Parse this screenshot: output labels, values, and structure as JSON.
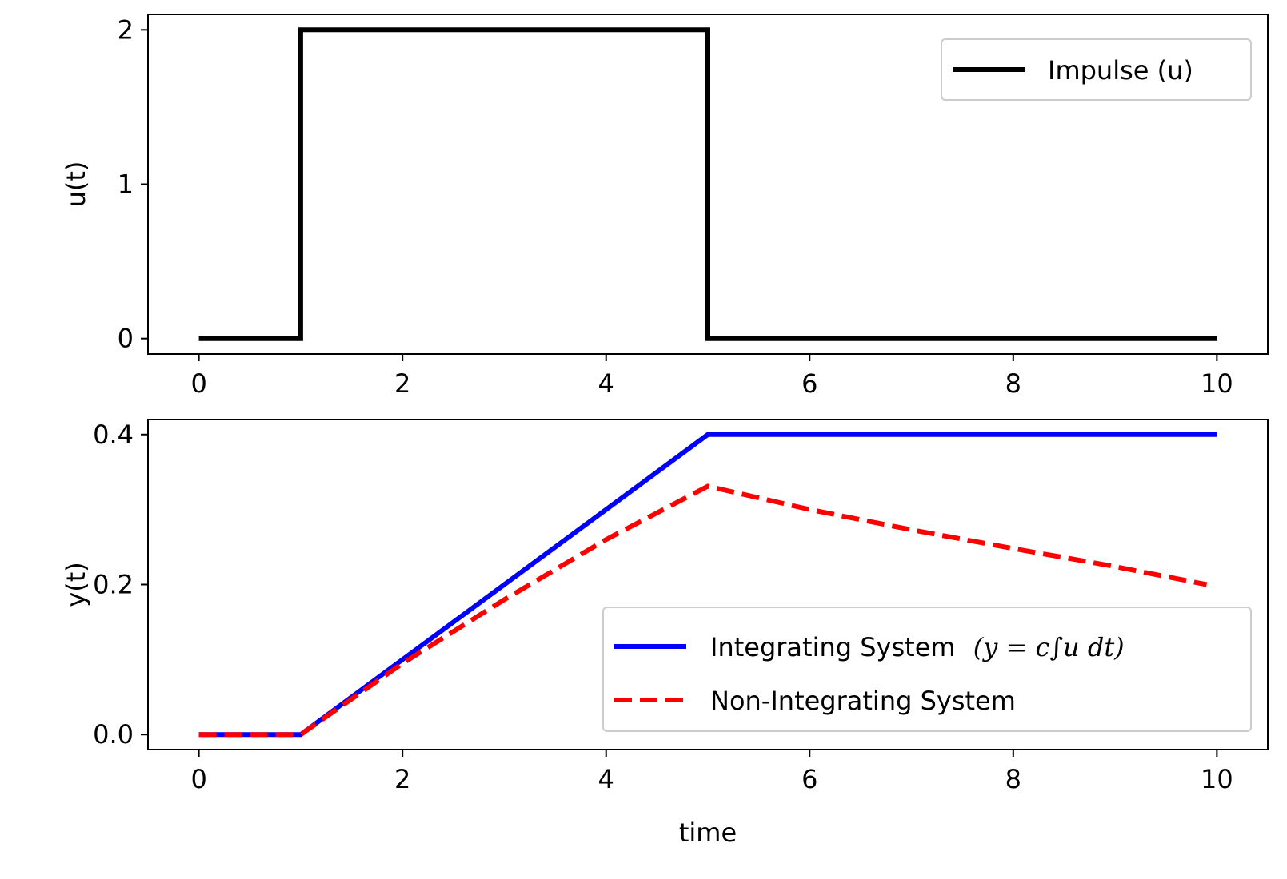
{
  "chart_data": [
    {
      "type": "line",
      "title": "",
      "xlabel": "",
      "ylabel": "u(t)",
      "xlim": [
        -0.5,
        10.5
      ],
      "ylim": [
        -0.1,
        2.1
      ],
      "xticks": [
        0,
        2,
        4,
        6,
        8,
        10
      ],
      "xtick_labels": [
        "0",
        "2",
        "4",
        "6",
        "8",
        "10"
      ],
      "yticks": [
        0,
        1,
        2
      ],
      "ytick_labels": [
        "0",
        "1",
        "2"
      ],
      "grid": false,
      "legend_position": "upper right",
      "series": [
        {
          "name": "Impulse (u)",
          "color": "#000000",
          "style": "solid",
          "step": true,
          "x": [
            0,
            1,
            1,
            5,
            5,
            10
          ],
          "y": [
            0,
            0,
            2,
            2,
            0,
            0
          ]
        }
      ]
    },
    {
      "type": "line",
      "title": "",
      "xlabel": "time",
      "ylabel": "y(t)",
      "xlim": [
        -0.5,
        10.5
      ],
      "ylim": [
        -0.02,
        0.42
      ],
      "xticks": [
        0,
        2,
        4,
        6,
        8,
        10
      ],
      "xtick_labels": [
        "0",
        "2",
        "4",
        "6",
        "8",
        "10"
      ],
      "yticks": [
        0.0,
        0.2,
        0.4
      ],
      "ytick_labels": [
        "0.0",
        "0.2",
        "0.4"
      ],
      "grid": false,
      "legend_position": "lower right",
      "series": [
        {
          "name": "Integrating System",
          "legend_math": "(y = c∫u dt)",
          "color": "#0000ff",
          "style": "solid",
          "x": [
            0,
            1,
            5,
            10
          ],
          "y": [
            0,
            0,
            0.4,
            0.4
          ]
        },
        {
          "name": "Non-Integrating System",
          "color": "#ff0000",
          "style": "dashed",
          "x": [
            0,
            1,
            2,
            3,
            4,
            5,
            6,
            7,
            8,
            9,
            9.9
          ],
          "y": [
            0,
            0,
            0.095,
            0.18,
            0.26,
            0.331,
            0.3,
            0.273,
            0.248,
            0.224,
            0.2
          ]
        }
      ]
    }
  ]
}
